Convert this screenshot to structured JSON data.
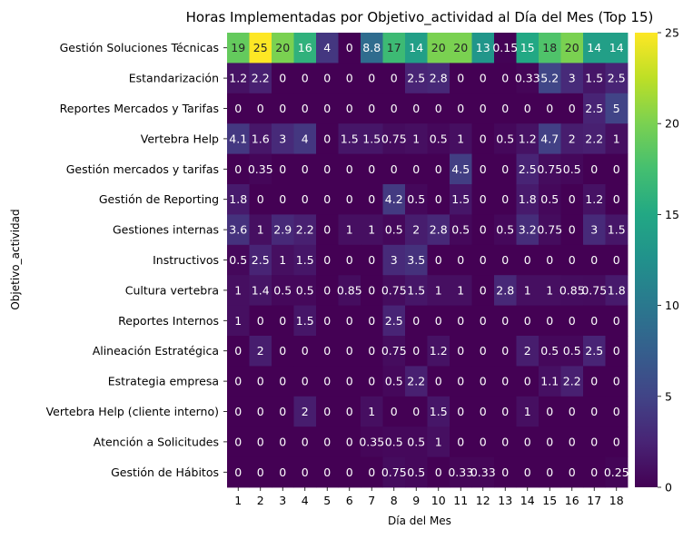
{
  "chart_data": {
    "type": "heatmap",
    "title": "Horas Implementadas por Objetivo_actividad al Día del Mes (Top 15)",
    "xlabel": "Día del Mes",
    "ylabel": "Objetivo_actividad",
    "x": [
      "1",
      "2",
      "3",
      "4",
      "5",
      "6",
      "7",
      "8",
      "9",
      "10",
      "11",
      "12",
      "13",
      "14",
      "15",
      "16",
      "17",
      "18"
    ],
    "y": [
      "Gestión Soluciones Técnicas",
      "Estandarización",
      "Reportes Mercados y Tarifas",
      "Vertebra Help",
      "Gestión mercados y tarifas",
      "Gestión de Reporting",
      "Gestiones internas",
      "Instructivos",
      "Cultura vertebra",
      "Reportes Internos",
      "Alineación Estratégica",
      "Estrategia empresa",
      "Vertebra Help (cliente interno)",
      "Atención a Solicitudes",
      "Gestión de Hábitos"
    ],
    "values": [
      [
        19,
        25,
        20,
        16,
        4,
        0,
        8.8,
        17,
        14,
        20,
        20,
        13,
        0.15,
        15,
        18,
        20,
        14,
        14
      ],
      [
        1.2,
        2.2,
        0,
        0,
        0,
        0,
        0,
        0,
        2.5,
        2.8,
        0,
        0,
        0,
        0.33,
        5.2,
        3,
        1.5,
        2.5
      ],
      [
        0,
        0,
        0,
        0,
        0,
        0,
        0,
        0,
        0,
        0,
        0,
        0,
        0,
        0,
        0,
        0,
        2.5,
        5
      ],
      [
        4.1,
        1.6,
        3,
        4,
        0,
        1.5,
        1.5,
        0.75,
        1,
        0.5,
        1,
        0,
        0.5,
        1.2,
        4.7,
        2,
        2.2,
        1
      ],
      [
        0,
        0.35,
        0,
        0,
        0,
        0,
        0,
        0,
        0,
        0,
        4.5,
        0,
        0,
        2.5,
        0.75,
        0.5,
        0,
        0
      ],
      [
        1.8,
        0,
        0,
        0,
        0,
        0,
        0,
        4.2,
        0.5,
        0,
        1.5,
        0,
        0,
        1.8,
        0.5,
        0,
        1.2,
        0
      ],
      [
        3.6,
        1,
        2.9,
        2.2,
        0,
        1,
        1,
        0.5,
        2,
        2.8,
        0.5,
        0,
        0.5,
        3.2,
        0.75,
        0,
        3,
        1.5
      ],
      [
        0.5,
        2.5,
        1,
        1.5,
        0,
        0,
        0,
        3,
        3.5,
        0,
        0,
        0,
        0,
        0,
        0,
        0,
        0,
        0
      ],
      [
        1,
        1.4,
        0.5,
        0.5,
        0,
        0.85,
        0,
        0.75,
        1.5,
        1,
        1,
        0,
        2.8,
        1,
        1,
        0.85,
        0.75,
        1.8
      ],
      [
        1,
        0,
        0,
        1.5,
        0,
        0,
        0,
        2.5,
        0,
        0,
        0,
        0,
        0,
        0,
        0,
        0,
        0,
        0
      ],
      [
        0,
        2,
        0,
        0,
        0,
        0,
        0,
        0.75,
        0,
        1.2,
        0,
        0,
        0,
        2,
        0.5,
        0.5,
        2.5,
        0
      ],
      [
        0,
        0,
        0,
        0,
        0,
        0,
        0,
        0.5,
        2.2,
        0,
        0,
        0,
        0,
        0,
        1.1,
        2.2,
        0,
        0
      ],
      [
        0,
        0,
        0,
        2,
        0,
        0,
        1,
        0,
        0,
        1.5,
        0,
        0,
        0,
        1,
        0,
        0,
        0,
        0
      ],
      [
        0,
        0,
        0,
        0,
        0,
        0,
        0.35,
        0.5,
        0.5,
        1,
        0,
        0,
        0,
        0,
        0,
        0,
        0,
        0
      ],
      [
        0,
        0,
        0,
        0,
        0,
        0,
        0,
        0.75,
        0.5,
        0,
        0.33,
        0.33,
        0,
        0,
        0,
        0,
        0,
        0.25
      ]
    ],
    "value_labels": [
      [
        "19",
        "25",
        "20",
        "16",
        "4",
        "0",
        "8.8",
        "17",
        "14",
        "20",
        "20",
        "13",
        "0.15",
        "15",
        "18",
        "20",
        "14",
        "14"
      ],
      [
        "1.2",
        "2.2",
        "0",
        "0",
        "0",
        "0",
        "0",
        "0",
        "2.5",
        "2.8",
        "0",
        "0",
        "0",
        "0.33",
        "5.2",
        "3",
        "1.5",
        "2.5"
      ],
      [
        "0",
        "0",
        "0",
        "0",
        "0",
        "0",
        "0",
        "0",
        "0",
        "0",
        "0",
        "0",
        "0",
        "0",
        "0",
        "0",
        "2.5",
        "5"
      ],
      [
        "4.1",
        "1.6",
        "3",
        "4",
        "0",
        "1.5",
        "1.5",
        "0.75",
        "1",
        "0.5",
        "1",
        "0",
        "0.5",
        "1.2",
        "4.7",
        "2",
        "2.2",
        "1"
      ],
      [
        "0",
        "0.35",
        "0",
        "0",
        "0",
        "0",
        "0",
        "0",
        "0",
        "0",
        "4.5",
        "0",
        "0",
        "2.5",
        "0.75",
        "0.5",
        "0",
        "0"
      ],
      [
        "1.8",
        "0",
        "0",
        "0",
        "0",
        "0",
        "0",
        "4.2",
        "0.5",
        "0",
        "1.5",
        "0",
        "0",
        "1.8",
        "0.5",
        "0",
        "1.2",
        "0"
      ],
      [
        "3.6",
        "1",
        "2.9",
        "2.2",
        "0",
        "1",
        "1",
        "0.5",
        "2",
        "2.8",
        "0.5",
        "0",
        "0.5",
        "3.2",
        "0.75",
        "0",
        "3",
        "1.5"
      ],
      [
        "0.5",
        "2.5",
        "1",
        "1.5",
        "0",
        "0",
        "0",
        "3",
        "3.5",
        "0",
        "0",
        "0",
        "0",
        "0",
        "0",
        "0",
        "0",
        "0"
      ],
      [
        "1",
        "1.4",
        "0.5",
        "0.5",
        "0",
        "0.85",
        "0",
        "0.75",
        "1.5",
        "1",
        "1",
        "0",
        "2.8",
        "1",
        "1",
        "0.85",
        "0.75",
        "1.8"
      ],
      [
        "1",
        "0",
        "0",
        "1.5",
        "0",
        "0",
        "0",
        "2.5",
        "0",
        "0",
        "0",
        "0",
        "0",
        "0",
        "0",
        "0",
        "0",
        "0"
      ],
      [
        "0",
        "2",
        "0",
        "0",
        "0",
        "0",
        "0",
        "0.75",
        "0",
        "1.2",
        "0",
        "0",
        "0",
        "2",
        "0.5",
        "0.5",
        "2.5",
        "0"
      ],
      [
        "0",
        "0",
        "0",
        "0",
        "0",
        "0",
        "0",
        "0.5",
        "2.2",
        "0",
        "0",
        "0",
        "0",
        "0",
        "1.1",
        "2.2",
        "0",
        "0"
      ],
      [
        "0",
        "0",
        "0",
        "2",
        "0",
        "0",
        "1",
        "0",
        "0",
        "1.5",
        "0",
        "0",
        "0",
        "1",
        "0",
        "0",
        "0",
        "0"
      ],
      [
        "0",
        "0",
        "0",
        "0",
        "0",
        "0",
        "0.35",
        "0.5",
        "0.5",
        "1",
        "0",
        "0",
        "0",
        "0",
        "0",
        "0",
        "0",
        "0"
      ],
      [
        "0",
        "0",
        "0",
        "0",
        "0",
        "0",
        "0",
        "0.75",
        "0.5",
        "0",
        "0.33",
        "0.33",
        "0",
        "0",
        "0",
        "0",
        "0",
        "0.25"
      ]
    ],
    "colorbar": {
      "colormap": "viridis",
      "range": [
        0,
        25
      ],
      "ticks": [
        0,
        5,
        10,
        15,
        20,
        25
      ]
    },
    "grid": false,
    "legend": "colorbar-right"
  }
}
